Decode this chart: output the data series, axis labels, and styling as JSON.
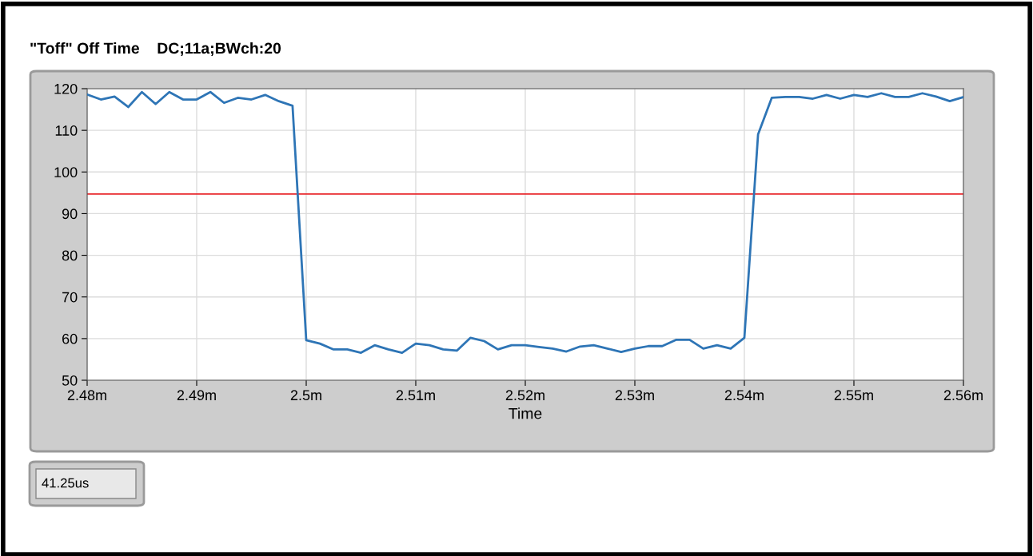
{
  "chart_data": {
    "type": "line",
    "title": "\"Toff\" Off Time    DC;11a;BWch:20",
    "xlabel": "Time",
    "annotations": [
      "41.25us"
    ],
    "x": [
      2.48,
      2.48125,
      2.4825,
      2.48375,
      2.485,
      2.48625,
      2.4875,
      2.48875,
      2.49,
      2.49125,
      2.4925,
      2.49375,
      2.495,
      2.49625,
      2.4975,
      2.49875,
      2.5,
      2.50125,
      2.5025,
      2.50375,
      2.505,
      2.50625,
      2.5075,
      2.50875,
      2.51,
      2.51125,
      2.5125,
      2.51375,
      2.515,
      2.51625,
      2.5175,
      2.51875,
      2.52,
      2.52125,
      2.5225,
      2.52375,
      2.525,
      2.52625,
      2.5275,
      2.52875,
      2.53,
      2.53125,
      2.5325,
      2.53375,
      2.535,
      2.53625,
      2.5375,
      2.53875,
      2.54,
      2.54125,
      2.5425,
      2.54375,
      2.545,
      2.54625,
      2.5475,
      2.54875,
      2.55,
      2.55125,
      2.5525,
      2.55375,
      2.555,
      2.55625,
      2.5575,
      2.55875,
      2.56
    ],
    "series": [
      {
        "color": "#2e75b6",
        "values": [
          118.6,
          117.4,
          118.1,
          115.6,
          119.2,
          116.3,
          119.2,
          117.4,
          117.4,
          119.2,
          116.6,
          117.8,
          117.4,
          118.5,
          117.0,
          115.9,
          59.6,
          58.8,
          57.4,
          57.4,
          56.6,
          58.4,
          57.4,
          56.6,
          58.8,
          58.4,
          57.4,
          57.1,
          60.2,
          59.4,
          57.4,
          58.4,
          58.4,
          58.0,
          57.6,
          56.9,
          58.1,
          58.4,
          57.6,
          56.8,
          57.6,
          58.2,
          58.2,
          59.7,
          59.7,
          57.6,
          58.4,
          57.6,
          60.2,
          109.0,
          117.8,
          118.0,
          118.0,
          117.6,
          118.5,
          117.6,
          118.5,
          118.0,
          118.9,
          118.0,
          118.0,
          118.9,
          118.1,
          117.0,
          118.0
        ]
      }
    ],
    "ref_lines": [
      {
        "axis": "y",
        "value": 94.7,
        "color": "#e8262b"
      }
    ],
    "xlim": [
      2.48,
      2.56
    ],
    "xticks": [
      {
        "value": 2.48,
        "label": "2.48m"
      },
      {
        "value": 2.49,
        "label": "2.49m"
      },
      {
        "value": 2.5,
        "label": "2.5m"
      },
      {
        "value": 2.51,
        "label": "2.51m"
      },
      {
        "value": 2.52,
        "label": "2.52m"
      },
      {
        "value": 2.53,
        "label": "2.53m"
      },
      {
        "value": 2.54,
        "label": "2.54m"
      },
      {
        "value": 2.55,
        "label": "2.55m"
      },
      {
        "value": 2.56,
        "label": "2.56m"
      }
    ],
    "ylim": [
      50,
      120
    ],
    "yticks": [
      50,
      60,
      70,
      80,
      90,
      100,
      110,
      120
    ],
    "grid": true,
    "marker": "none",
    "line_style": "solid"
  }
}
